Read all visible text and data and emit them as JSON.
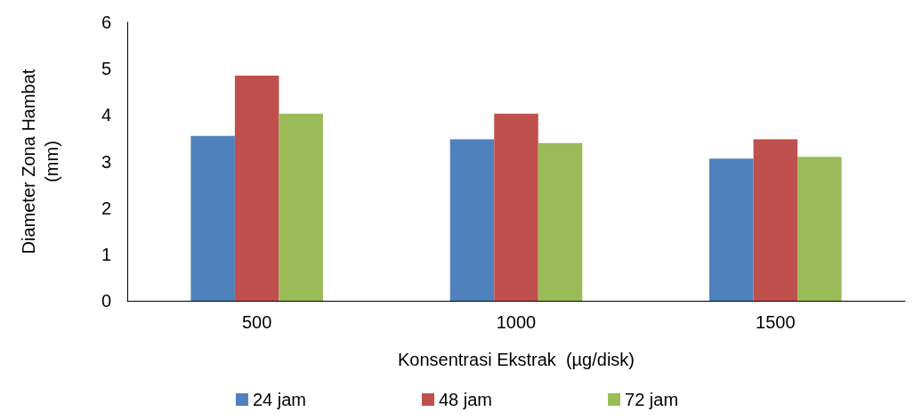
{
  "chart_data": {
    "type": "bar",
    "xlabel": "Konsentrasi Ekstrak  (µg/disk)",
    "ylabel": "Diameter Zona Hambat\n(mm)",
    "categories": [
      "500",
      "1000",
      "1500"
    ],
    "series": [
      {
        "name": "24 jam",
        "color": "#4f81bd",
        "values": [
          3.55,
          3.48,
          3.06
        ]
      },
      {
        "name": "48 jam",
        "color": "#c0504d",
        "values": [
          4.85,
          4.03,
          3.48
        ]
      },
      {
        "name": "72 jam",
        "color": "#9bbb59",
        "values": [
          4.03,
          3.4,
          3.1
        ]
      }
    ],
    "ylim": [
      0,
      6
    ],
    "yticks": [
      0,
      1,
      2,
      3,
      4,
      5,
      6
    ],
    "grid": false,
    "legend": "bottom"
  }
}
